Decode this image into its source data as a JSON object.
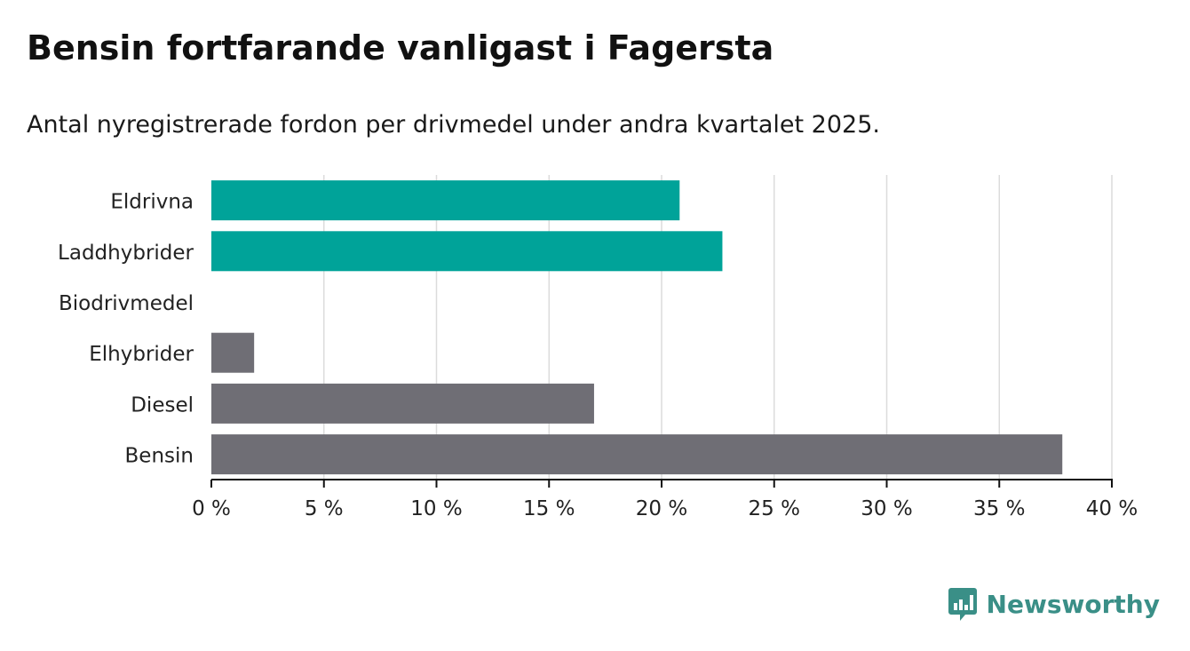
{
  "title": "Bensin fortfarande vanligast i Fagersta",
  "subtitle": "Antal nyregistrerade fordon per drivmedel under andra kvartalet 2025.",
  "brand": {
    "name": "Newsworthy",
    "color": "#3a8f87",
    "icon": "bar-chart-chat-icon"
  },
  "chart_data": {
    "type": "bar",
    "orientation": "horizontal",
    "categories": [
      "Eldrivna",
      "Laddhybrider",
      "Biodrivmedel",
      "Elhybrider",
      "Diesel",
      "Bensin"
    ],
    "values": [
      20.8,
      22.7,
      0,
      1.9,
      17.0,
      37.8
    ],
    "colors": [
      "#00a399",
      "#00a399",
      "#6f6e75",
      "#6f6e75",
      "#6f6e75",
      "#6f6e75"
    ],
    "xlim": [
      0,
      40
    ],
    "xticks": [
      0,
      5,
      10,
      15,
      20,
      25,
      30,
      35,
      40
    ],
    "xtick_labels": [
      "0 %",
      "5 %",
      "10 %",
      "15 %",
      "20 %",
      "25 %",
      "30 %",
      "35 %",
      "40 %"
    ],
    "grid": true
  }
}
